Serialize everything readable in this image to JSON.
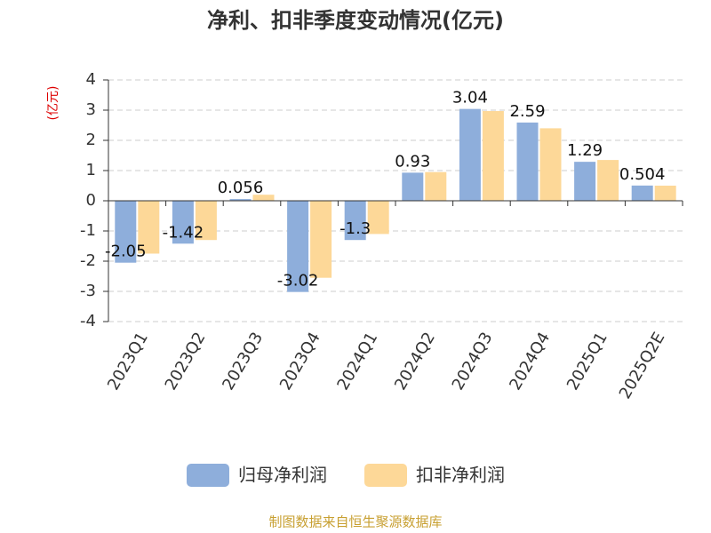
{
  "chart_data": {
    "type": "bar",
    "title": "净利、扣非季度变动情况(亿元)",
    "y_axis_label": "(亿元)",
    "source": "制图数据来自恒生聚源数据库",
    "categories": [
      "2023Q1",
      "2023Q2",
      "2023Q3",
      "2023Q4",
      "2024Q1",
      "2024Q2",
      "2024Q3",
      "2024Q4",
      "2025Q1",
      "2025Q2E"
    ],
    "series": [
      {
        "name": "归母净利润",
        "color": "#8eaedb",
        "values": [
          -2.05,
          -1.42,
          0.056,
          -3.02,
          -1.3,
          0.93,
          3.04,
          2.59,
          1.29,
          0.504
        ],
        "show_labels": true
      },
      {
        "name": "扣非净利润",
        "color": "#fdd898",
        "values": [
          -1.75,
          -1.3,
          0.2,
          -2.55,
          -1.1,
          0.95,
          2.97,
          2.4,
          1.35,
          0.5
        ],
        "show_labels": false
      }
    ],
    "ylim": [
      -4,
      4
    ],
    "yticks": [
      -4,
      -3,
      -2,
      -1,
      0,
      1,
      2,
      3,
      4
    ],
    "grid": true,
    "legend": "bottom"
  }
}
